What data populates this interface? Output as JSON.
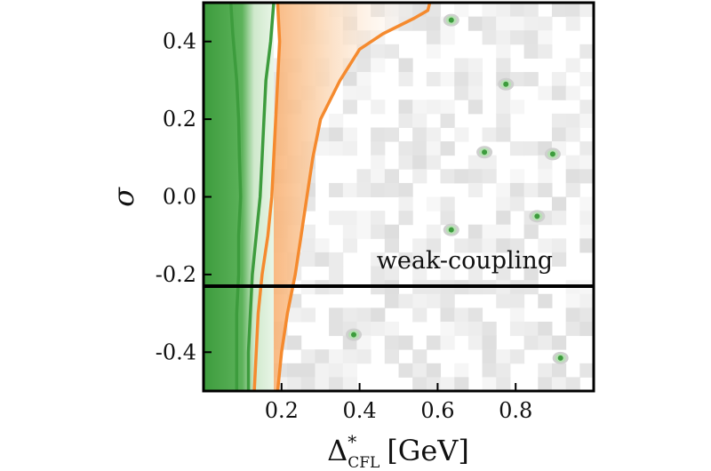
{
  "chart_data": {
    "type": "heatmap",
    "title": "",
    "xlabel": "Δ*CFL [GeV]",
    "xlabel_parts": {
      "symbol": "Δ",
      "superscript": "*",
      "subscript": "CFL",
      "unit": "[GeV]"
    },
    "ylabel": "σ",
    "xlim": [
      0.0,
      1.0
    ],
    "ylim": [
      -0.5,
      0.5
    ],
    "xticks": [
      0.2,
      0.4,
      0.6,
      0.8
    ],
    "xtick_labels": [
      "0.2",
      "0.4",
      "0.6",
      "0.8"
    ],
    "yticks": [
      0.4,
      0.2,
      0.0,
      -0.2,
      -0.4
    ],
    "ytick_labels": [
      "0.4",
      "0.2",
      "0.0",
      "-0.2",
      "-0.4"
    ],
    "divider_sigma": -0.23,
    "annotation": {
      "text": "weak-coupling",
      "x": 0.83,
      "y": -0.165
    },
    "grid": false,
    "colors": {
      "green_dark": "#3d9c3d",
      "green_light": "#b8e0b5",
      "orange": "#f58a2e",
      "orange_light": "#fbd0a8",
      "gray_background": "#e6e6e6",
      "divider": "#000000"
    },
    "regions": [
      {
        "name": "green-band",
        "x_from": 0.0,
        "x_to": 0.18
      },
      {
        "name": "orange-band",
        "x_from": 0.15,
        "x_to": 0.58
      }
    ],
    "contours": [
      {
        "color": "green_dark",
        "points": [
          [
            0.07,
            0.5
          ],
          [
            0.075,
            0.42
          ],
          [
            0.085,
            0.3
          ],
          [
            0.09,
            0.2
          ],
          [
            0.092,
            0.1
          ],
          [
            0.095,
            0.0
          ],
          [
            0.09,
            -0.1
          ],
          [
            0.09,
            -0.2
          ],
          [
            0.085,
            -0.3
          ],
          [
            0.085,
            -0.4
          ],
          [
            0.085,
            -0.5
          ]
        ]
      },
      {
        "color": "green_dark",
        "points": [
          [
            0.18,
            0.5
          ],
          [
            0.172,
            0.4
          ],
          [
            0.16,
            0.3
          ],
          [
            0.155,
            0.2
          ],
          [
            0.15,
            0.1
          ],
          [
            0.145,
            0.0
          ],
          [
            0.135,
            -0.1
          ],
          [
            0.125,
            -0.2
          ],
          [
            0.12,
            -0.3
          ],
          [
            0.115,
            -0.4
          ],
          [
            0.115,
            -0.5
          ]
        ]
      },
      {
        "color": "orange",
        "points": [
          [
            0.19,
            0.5
          ],
          [
            0.195,
            0.4
          ],
          [
            0.19,
            0.3
          ],
          [
            0.185,
            0.2
          ],
          [
            0.18,
            0.1
          ],
          [
            0.175,
            0.0
          ],
          [
            0.165,
            -0.1
          ],
          [
            0.15,
            -0.2
          ],
          [
            0.14,
            -0.3
          ],
          [
            0.135,
            -0.4
          ],
          [
            0.13,
            -0.5
          ]
        ]
      },
      {
        "color": "orange",
        "points": [
          [
            0.58,
            0.5
          ],
          [
            0.575,
            0.48
          ],
          [
            0.54,
            0.46
          ],
          [
            0.46,
            0.42
          ],
          [
            0.4,
            0.38
          ],
          [
            0.35,
            0.3
          ],
          [
            0.3,
            0.2
          ],
          [
            0.28,
            0.1
          ],
          [
            0.265,
            0.0
          ],
          [
            0.25,
            -0.1
          ],
          [
            0.235,
            -0.2
          ],
          [
            0.215,
            -0.3
          ],
          [
            0.2,
            -0.4
          ],
          [
            0.19,
            -0.5
          ]
        ]
      }
    ],
    "islands": [
      {
        "x": 0.635,
        "y": 0.455
      },
      {
        "x": 0.775,
        "y": 0.29
      },
      {
        "x": 0.895,
        "y": 0.11
      },
      {
        "x": 0.72,
        "y": 0.115
      },
      {
        "x": 0.635,
        "y": -0.085
      },
      {
        "x": 0.855,
        "y": -0.05
      },
      {
        "x": 0.385,
        "y": -0.355
      },
      {
        "x": 0.915,
        "y": -0.415
      }
    ]
  }
}
